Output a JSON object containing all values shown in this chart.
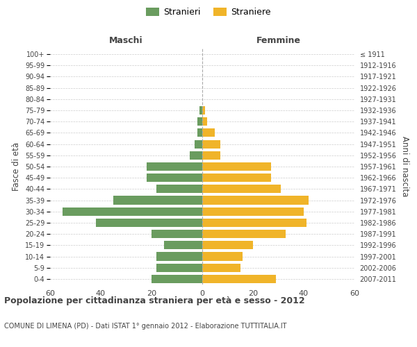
{
  "age_groups": [
    "0-4",
    "5-9",
    "10-14",
    "15-19",
    "20-24",
    "25-29",
    "30-34",
    "35-39",
    "40-44",
    "45-49",
    "50-54",
    "55-59",
    "60-64",
    "65-69",
    "70-74",
    "75-79",
    "80-84",
    "85-89",
    "90-94",
    "95-99",
    "100+"
  ],
  "birth_years": [
    "2007-2011",
    "2002-2006",
    "1997-2001",
    "1992-1996",
    "1987-1991",
    "1982-1986",
    "1977-1981",
    "1972-1976",
    "1967-1971",
    "1962-1966",
    "1957-1961",
    "1952-1956",
    "1947-1951",
    "1942-1946",
    "1937-1941",
    "1932-1936",
    "1927-1931",
    "1922-1926",
    "1917-1921",
    "1912-1916",
    "≤ 1911"
  ],
  "males": [
    20,
    18,
    18,
    15,
    20,
    42,
    55,
    35,
    18,
    22,
    22,
    5,
    3,
    2,
    2,
    1,
    0,
    0,
    0,
    0,
    0
  ],
  "females": [
    29,
    15,
    16,
    20,
    33,
    41,
    40,
    42,
    31,
    27,
    27,
    7,
    7,
    5,
    2,
    1,
    0,
    0,
    0,
    0,
    0
  ],
  "male_color": "#6a9c5f",
  "female_color": "#f0b429",
  "bar_height": 0.75,
  "xlim": 60,
  "title": "Popolazione per cittadinanza straniera per età e sesso - 2012",
  "subtitle": "COMUNE DI LIMENA (PD) - Dati ISTAT 1° gennaio 2012 - Elaborazione TUTTITALIA.IT",
  "label_left": "Maschi",
  "label_right": "Femmine",
  "ylabel_left": "Fasce di età",
  "ylabel_right": "Anni di nascita",
  "legend_male": "Stranieri",
  "legend_female": "Straniere",
  "bg_color": "#ffffff",
  "grid_color": "#cccccc",
  "text_color": "#444444",
  "center_line_color": "#aaaaaa"
}
